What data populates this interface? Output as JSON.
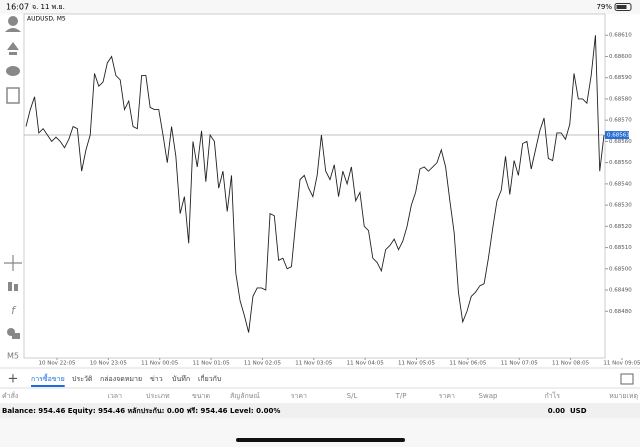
{
  "status_bar": {
    "time": "16:07",
    "date": "จ. 11 พ.ย.",
    "battery": "79%"
  },
  "chart": {
    "type": "line",
    "symbol": "AUDUSD, M5",
    "timeframe": "M5",
    "color": "#222222",
    "values": [
      0.68567,
      0.68575,
      0.68581,
      0.68564,
      0.68566,
      0.68563,
      0.6856,
      0.68562,
      0.6856,
      0.68557,
      0.68561,
      0.68567,
      0.68566,
      0.68546,
      0.68556,
      0.68563,
      0.68592,
      0.68586,
      0.68588,
      0.68597,
      0.686,
      0.68591,
      0.68589,
      0.68575,
      0.68579,
      0.68567,
      0.68566,
      0.68591,
      0.68591,
      0.68576,
      0.68575,
      0.68575,
      0.68563,
      0.6855,
      0.68567,
      0.68553,
      0.68526,
      0.68534,
      0.68512,
      0.6856,
      0.68548,
      0.68565,
      0.68541,
      0.68563,
      0.6856,
      0.68538,
      0.68546,
      0.68527,
      0.68544,
      0.68498,
      0.68485,
      0.68478,
      0.6847,
      0.68487,
      0.68491,
      0.68491,
      0.6849,
      0.68526,
      0.68525,
      0.68504,
      0.68505,
      0.685,
      0.68501,
      0.68522,
      0.68542,
      0.68544,
      0.68538,
      0.68534,
      0.68544,
      0.68563,
      0.68546,
      0.68542,
      0.68549,
      0.68534,
      0.68546,
      0.6854,
      0.68548,
      0.68532,
      0.68536,
      0.6852,
      0.68518,
      0.68505,
      0.68503,
      0.68499,
      0.68509,
      0.68511,
      0.68514,
      0.68509,
      0.68513,
      0.6852,
      0.6853,
      0.68536,
      0.68547,
      0.68548,
      0.68546,
      0.68548,
      0.6855,
      0.68556,
      0.68548,
      0.68532,
      0.68517,
      0.68489,
      0.68475,
      0.6848,
      0.68487,
      0.68489,
      0.68492,
      0.68493,
      0.68505,
      0.68519,
      0.68532,
      0.68537,
      0.68553,
      0.68535,
      0.68551,
      0.68544,
      0.68559,
      0.6856,
      0.68547,
      0.68556,
      0.68565,
      0.68571,
      0.68552,
      0.68551,
      0.68564,
      0.68564,
      0.68561,
      0.68568,
      0.68592,
      0.6858,
      0.6858,
      0.68578,
      0.68591,
      0.6861,
      0.68546,
      0.68563
    ],
    "x_labels": [
      "10 Nov 22:05",
      "10 Nov 23:05",
      "11 Nov 00:05",
      "11 Nov 01:05",
      "11 Nov 02:05",
      "11 Nov 03:05",
      "11 Nov 04:05",
      "11 Nov 05:05",
      "11 Nov 06:05",
      "11 Nov 07:05",
      "11 Nov 08:05",
      "11 Nov 09:05"
    ],
    "ylim": [
      0.68458,
      0.6862
    ],
    "yticks": [
      {
        "value": 0.6848,
        "label": "0.68480"
      },
      {
        "value": 0.6849,
        "label": "0.68490"
      },
      {
        "value": 0.685,
        "label": "0.68500"
      },
      {
        "value": 0.6851,
        "label": "0.68510"
      },
      {
        "value": 0.6852,
        "label": "0.68520"
      },
      {
        "value": 0.6853,
        "label": "0.68530"
      },
      {
        "value": 0.6854,
        "label": "0.68540"
      },
      {
        "value": 0.6855,
        "label": "0.68550"
      },
      {
        "value": 0.6856,
        "label": "0.68560"
      },
      {
        "value": 0.6857,
        "label": "0.68570"
      },
      {
        "value": 0.6858,
        "label": "0.68580"
      },
      {
        "value": 0.6859,
        "label": "0.68590"
      },
      {
        "value": 0.686,
        "label": "0.68600"
      },
      {
        "value": 0.6861,
        "label": "0.68610"
      }
    ],
    "current_price": {
      "value": 0.68563,
      "label": "0.68563"
    }
  },
  "tabs": [
    "การซื้อขาย",
    "ประวัติ",
    "กล่องจดหมาย",
    "ข่าว",
    "บันทึก",
    "เกี่ยวกับ"
  ],
  "active_tab": 0,
  "table": {
    "columns": [
      "คำสั่ง",
      "เวลา",
      "ประเภท",
      "ขนาด",
      "สัญลักษณ์",
      "ราคา",
      "S/L",
      "T/P",
      "ราคา",
      "Swap",
      "กำไร",
      "หมายเหตุ"
    ]
  },
  "account": {
    "summary": "Balance: 954.46 Equity: 954.46 หลักประกัน: 0.00 ฟรี: 954.46 Level: 0.00%",
    "profit": "0.00",
    "currency": "USD"
  }
}
